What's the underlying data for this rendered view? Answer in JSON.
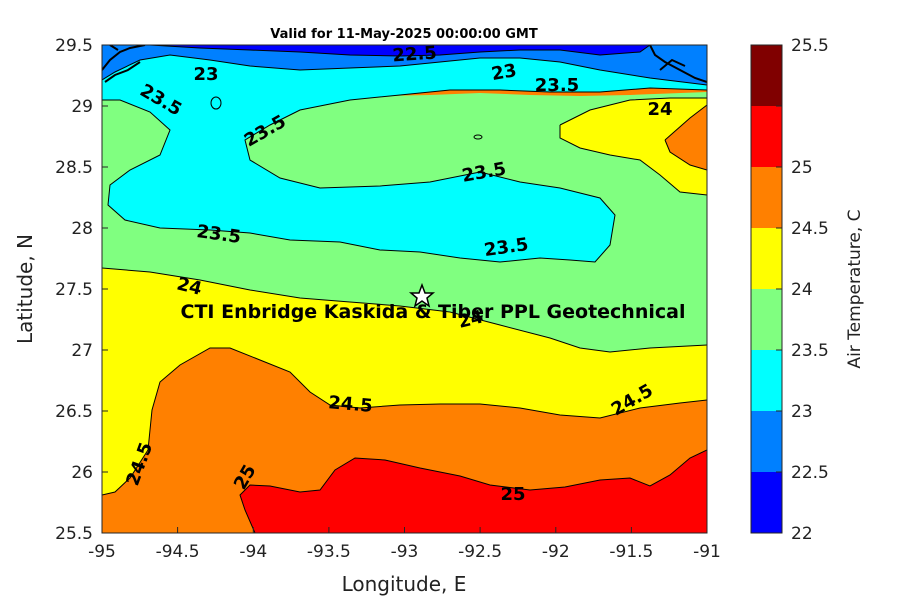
{
  "title": "Valid for 11-May-2025 00:00:00 GMT",
  "xlabel": "Longitude, E",
  "ylabel": "Latitude, N",
  "colorbar_label": "Air Temperature, C",
  "site_label": "CTI Enbridge  Kaskida & Tiber PPL Geotechnical",
  "site_marker": "star-icon",
  "x_ticks": [
    "-95",
    "-94.5",
    "-94",
    "-93.5",
    "-93",
    "-92.5",
    "-92",
    "-91.5",
    "-91"
  ],
  "y_ticks": [
    "25.5",
    "26",
    "26.5",
    "27",
    "27.5",
    "28",
    "28.5",
    "29",
    "29.5"
  ],
  "cbar_ticks": [
    "22",
    "22.5",
    "23",
    "23.5",
    "24",
    "24.5",
    "25",
    "25.5"
  ],
  "contour_labels": [
    "22.5",
    "23",
    "23",
    "23.5",
    "23.5",
    "24",
    "23.5",
    "23.5",
    "23.5",
    "23.5",
    "24",
    "24",
    "24.5",
    "24.5",
    "24.5",
    "25",
    "25"
  ],
  "colors": {
    "22": "#0000ff",
    "22.5": "#0080ff",
    "23": "#00ffff",
    "23.5": "#80ff80",
    "24": "#ffff00",
    "24.5": "#ff8000",
    "25": "#ff0000",
    "25.5": "#800000"
  },
  "chart_data": {
    "type": "heatmap",
    "title": "Valid for 11-May-2025 00:00:00 GMT",
    "xlabel": "Longitude, E",
    "ylabel": "Latitude, N",
    "xlim": [
      -95,
      -91
    ],
    "ylim": [
      25.5,
      29.5
    ],
    "colorbar": {
      "label": "Air Temperature, C",
      "range": [
        22,
        25.5
      ],
      "levels": [
        22,
        22.5,
        23,
        23.5,
        24,
        24.5,
        25,
        25.5
      ]
    },
    "site": {
      "name": "CTI Enbridge  Kaskida & Tiber PPL Geotechnical",
      "lon": -92.88,
      "lat": 27.43
    },
    "contour_levels": [
      22.5,
      23,
      23.5,
      24,
      24.5,
      25
    ]
  }
}
